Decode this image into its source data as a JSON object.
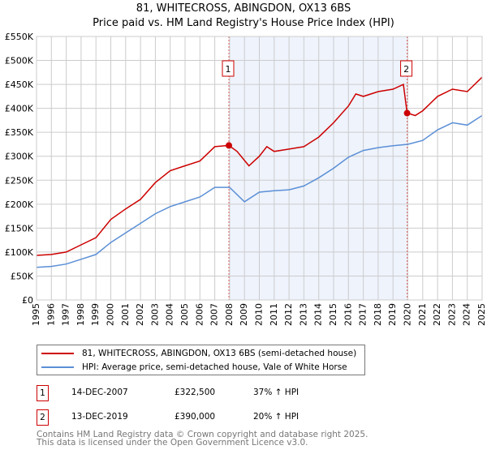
{
  "chart_data": {
    "type": "line",
    "title": "81, WHITECROSS, ABINGDON, OX13 6BS",
    "subtitle": "Price paid vs. HM Land Registry's House Price Index (HPI)",
    "xlim": [
      1995,
      2025
    ],
    "ylim": [
      0,
      550000
    ],
    "x_ticks": [
      "1995",
      "1996",
      "1997",
      "1998",
      "1999",
      "2000",
      "2001",
      "2002",
      "2003",
      "2004",
      "2005",
      "2006",
      "2007",
      "2008",
      "2009",
      "2010",
      "2011",
      "2012",
      "2013",
      "2014",
      "2015",
      "2016",
      "2017",
      "2018",
      "2019",
      "2020",
      "2021",
      "2022",
      "2023",
      "2024",
      "2025"
    ],
    "y_ticks": [
      {
        "v": 0,
        "label": "£0"
      },
      {
        "v": 50000,
        "label": "£50K"
      },
      {
        "v": 100000,
        "label": "£100K"
      },
      {
        "v": 150000,
        "label": "£150K"
      },
      {
        "v": 200000,
        "label": "£200K"
      },
      {
        "v": 250000,
        "label": "£250K"
      },
      {
        "v": 300000,
        "label": "£300K"
      },
      {
        "v": 350000,
        "label": "£350K"
      },
      {
        "v": 400000,
        "label": "£400K"
      },
      {
        "v": 450000,
        "label": "£450K"
      },
      {
        "v": 500000,
        "label": "£500K"
      },
      {
        "v": 550000,
        "label": "£550K"
      }
    ],
    "grid": true,
    "series": [
      {
        "name": "81, WHITECROSS, ABINGDON, OX13 6BS (semi-detached house)",
        "color": "#cc0000",
        "x": [
          1995,
          1996,
          1997,
          1998,
          1999,
          2000,
          2001,
          2002,
          2003,
          2004,
          2005,
          2006,
          2007,
          2007.95,
          2008.5,
          2009.3,
          2010,
          2010.5,
          2011,
          2012,
          2013,
          2014,
          2015,
          2016,
          2016.5,
          2017,
          2018,
          2019,
          2019.7,
          2019.95,
          2020.5,
          2021,
          2022,
          2023,
          2024,
          2025
        ],
        "y": [
          93000,
          95000,
          100000,
          115000,
          130000,
          168000,
          190000,
          210000,
          245000,
          270000,
          280000,
          290000,
          320000,
          322500,
          310000,
          280000,
          300000,
          320000,
          310000,
          315000,
          320000,
          340000,
          370000,
          405000,
          430000,
          425000,
          435000,
          440000,
          450000,
          390000,
          385000,
          395000,
          425000,
          440000,
          435000,
          465000
        ]
      },
      {
        "name": "HPI: Average price, semi-detached house, Vale of White Horse",
        "color": "#5b8fd6",
        "x": [
          1995,
          1996,
          1997,
          1998,
          1999,
          2000,
          2001,
          2002,
          2003,
          2004,
          2005,
          2006,
          2007,
          2008,
          2009,
          2010,
          2011,
          2012,
          2013,
          2014,
          2015,
          2016,
          2017,
          2018,
          2019,
          2020,
          2021,
          2022,
          2023,
          2024,
          2025
        ],
        "y": [
          68000,
          70000,
          75000,
          85000,
          95000,
          120000,
          140000,
          160000,
          180000,
          195000,
          205000,
          215000,
          235000,
          235000,
          205000,
          225000,
          228000,
          230000,
          238000,
          255000,
          275000,
          298000,
          312000,
          318000,
          322000,
          325000,
          333000,
          355000,
          370000,
          365000,
          385000
        ]
      }
    ],
    "sales": [
      {
        "n": "1",
        "x": 2007.95,
        "date": "14-DEC-2007",
        "price": 322500,
        "price_label": "£322,500",
        "hpi": "37% ↑ HPI"
      },
      {
        "n": "2",
        "x": 2019.95,
        "date": "13-DEC-2019",
        "price": 390000,
        "price_label": "£390,000",
        "hpi": "20% ↑ HPI"
      }
    ],
    "shade_color": "#eef3fc"
  },
  "footer": {
    "line1": "Contains HM Land Registry data © Crown copyright and database right 2025.",
    "line2": "This data is licensed under the Open Government Licence v3.0."
  }
}
